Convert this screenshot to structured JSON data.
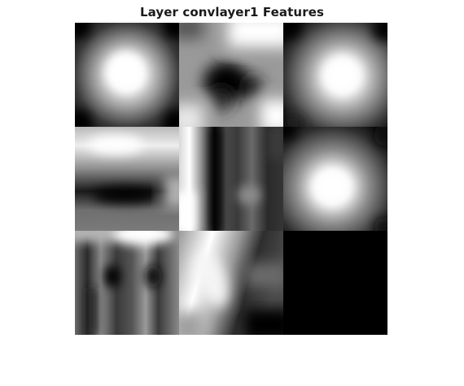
{
  "figure": {
    "title": "Layer convlayer1 Features"
  },
  "montage": {
    "rows": 3,
    "cols": 3,
    "colormap": "gray",
    "tiles": [
      {
        "index": 1,
        "pattern": "bright-center-blob"
      },
      {
        "index": 2,
        "pattern": "dark-center-blob"
      },
      {
        "index": 3,
        "pattern": "bright-center-blob"
      },
      {
        "index": 4,
        "pattern": "dark-horizontal-band"
      },
      {
        "index": 5,
        "pattern": "vertical-stripes"
      },
      {
        "index": 6,
        "pattern": "bright-center-blob"
      },
      {
        "index": 7,
        "pattern": "vertical-stripes"
      },
      {
        "index": 8,
        "pattern": "diagonal-light-band"
      },
      {
        "index": 9,
        "pattern": "uniform-black"
      }
    ]
  }
}
